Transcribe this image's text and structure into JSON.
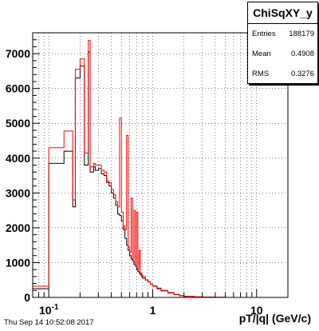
{
  "chart_data": {
    "type": "histogram",
    "title": "ChiSqXY_y",
    "xlabel": "pT/|q| (GeV/c)",
    "ylabel": "",
    "x_scale": "log",
    "xlim": [
      0.07,
      20
    ],
    "ylim": [
      0,
      7600
    ],
    "grid": true,
    "x_ticks": [
      {
        "value": 0.1,
        "label": "10",
        "sup": "-1"
      },
      {
        "value": 1,
        "label": "1",
        "sup": ""
      },
      {
        "value": 10,
        "label": "10",
        "sup": ""
      }
    ],
    "y_ticks": [
      0,
      1000,
      2000,
      3000,
      4000,
      5000,
      6000,
      7000
    ],
    "stats": {
      "entries": "188179",
      "mean": "0.4908",
      "rms": "0.3276"
    },
    "series": [
      {
        "color": "#000000",
        "x": [
          0.07,
          0.1,
          0.14,
          0.17,
          0.18,
          0.2,
          0.22,
          0.24,
          0.25,
          0.27,
          0.28,
          0.3,
          0.32,
          0.34,
          0.36,
          0.38,
          0.4,
          0.42,
          0.44,
          0.46,
          0.48,
          0.5,
          0.52,
          0.54,
          0.56,
          0.58,
          0.6,
          0.62,
          0.64,
          0.66,
          0.68,
          0.7,
          0.72,
          0.74,
          0.76,
          0.78,
          0.8,
          0.85,
          0.9,
          0.95,
          1.0,
          1.1,
          1.2,
          1.4,
          1.6,
          1.8,
          2.0,
          2.5,
          3.0,
          4.0,
          5.0,
          7.0
        ],
        "y": [
          250,
          3850,
          4200,
          2600,
          6300,
          6650,
          3800,
          7050,
          3600,
          3750,
          3650,
          3700,
          3550,
          3500,
          3300,
          3200,
          3000,
          2850,
          2650,
          2400,
          2350,
          2200,
          1950,
          1700,
          1500,
          1350,
          1200,
          1100,
          1050,
          950,
          900,
          800,
          750,
          700,
          650,
          600,
          550,
          500,
          450,
          380,
          320,
          250,
          190,
          130,
          80,
          50,
          30,
          15,
          8,
          4,
          0,
          0
        ]
      },
      {
        "color": "#ff0000",
        "x": [
          0.07,
          0.1,
          0.14,
          0.17,
          0.18,
          0.2,
          0.22,
          0.24,
          0.25,
          0.27,
          0.28,
          0.3,
          0.32,
          0.34,
          0.36,
          0.38,
          0.4,
          0.42,
          0.44,
          0.46,
          0.48,
          0.5,
          0.52,
          0.54,
          0.56,
          0.58,
          0.6,
          0.62,
          0.64,
          0.66,
          0.68,
          0.7,
          0.72,
          0.74,
          0.76,
          0.78,
          0.8,
          0.85,
          0.9,
          0.95,
          1.0,
          1.1,
          1.2,
          1.4,
          1.6,
          1.8,
          2.0,
          2.5,
          3.0,
          4.0,
          5.0,
          7.0
        ],
        "y": [
          320,
          4300,
          4780,
          2800,
          6550,
          6850,
          4150,
          7380,
          3750,
          3850,
          3800,
          3800,
          3650,
          3600,
          3350,
          3300,
          3100,
          2950,
          2750,
          2600,
          5150,
          2450,
          2050,
          1950,
          4650,
          1450,
          1300,
          2850,
          1100,
          2500,
          900,
          2450,
          800,
          1350,
          700,
          650,
          600,
          500,
          450,
          380,
          330,
          270,
          200,
          140,
          90,
          55,
          35,
          18,
          10,
          5,
          0,
          0
        ]
      }
    ]
  },
  "footer": {
    "date": "Thu Sep 14 10:52:08 2017"
  }
}
